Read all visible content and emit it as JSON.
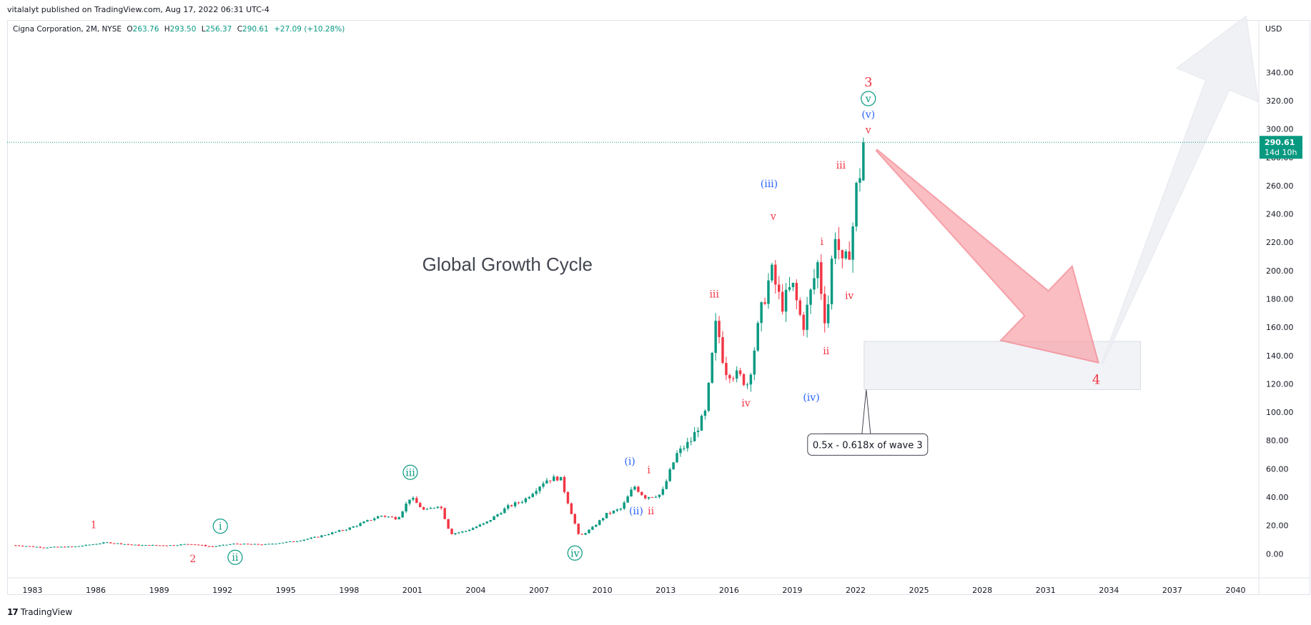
{
  "header": {
    "published_by": "vitalalyt published on TradingView.com, Aug 17, 2022 06:31 UTC-4"
  },
  "symbol_bar": {
    "name": "Cigna Corporation, 2M, NYSE",
    "o_label": "O",
    "o_value": "263.76",
    "h_label": "H",
    "h_value": "293.50",
    "l_label": "L",
    "l_value": "256.37",
    "c_label": "C",
    "c_value": "290.61",
    "change": "+27.09 (+10.28%)"
  },
  "price_badge": {
    "price": "290.61",
    "countdown": "14d 10h"
  },
  "footer": {
    "brand": "TradingView"
  },
  "colors": {
    "up": "#089981",
    "down": "#f23645",
    "wave_red": "#f23645",
    "wave_blue": "#2962ff",
    "wave_green": "#089981",
    "arrow_fill": "#f7a8ae",
    "arrow_stroke": "#f47f89",
    "grey_arrow": "#eef0f4",
    "zone_fill": "#f1f3f7"
  },
  "chart_data": {
    "type": "candlestick",
    "interval": "2M",
    "currency_label": "USD",
    "last_price": 290.61,
    "ylim": [
      -17,
      377
    ],
    "xlim": [
      1981.8,
      2041.1
    ],
    "y_ticks": [
      "0.00",
      "20.00",
      "40.00",
      "60.00",
      "80.00",
      "100.00",
      "120.00",
      "140.00",
      "160.00",
      "180.00",
      "200.00",
      "220.00",
      "240.00",
      "260.00",
      "280.00",
      "300.00",
      "320.00",
      "340.00"
    ],
    "y_tick_values": [
      0,
      20,
      40,
      60,
      80,
      100,
      120,
      140,
      160,
      180,
      200,
      220,
      240,
      260,
      280,
      300,
      320,
      340
    ],
    "x_ticks": [
      "1983",
      "1986",
      "1989",
      "1992",
      "1995",
      "1998",
      "2001",
      "2004",
      "2007",
      "2010",
      "2013",
      "2016",
      "2019",
      "2022",
      "2025",
      "2028",
      "2031",
      "2034",
      "2037",
      "2040"
    ],
    "x_tick_values": [
      1983,
      1986,
      1989,
      1992,
      1995,
      1998,
      2001,
      2004,
      2007,
      2010,
      2013,
      2016,
      2019,
      2022,
      2025,
      2028,
      2031,
      2034,
      2037,
      2040
    ],
    "price_anchors": [
      [
        1982.2,
        6
      ],
      [
        1983.5,
        4.5
      ],
      [
        1985,
        5
      ],
      [
        1986.5,
        8
      ],
      [
        1988,
        6
      ],
      [
        1989.5,
        6
      ],
      [
        1990.5,
        7
      ],
      [
        1991.5,
        5
      ],
      [
        1992.5,
        7
      ],
      [
        1994,
        6.5
      ],
      [
        1995.5,
        9
      ],
      [
        1996.5,
        12
      ],
      [
        1998,
        18
      ],
      [
        1999.5,
        27
      ],
      [
        2000.3,
        25
      ],
      [
        2000.9,
        40
      ],
      [
        2001.6,
        30
      ],
      [
        2002.3,
        35
      ],
      [
        2002.8,
        14
      ],
      [
        2003.5,
        16
      ],
      [
        2004.5,
        22
      ],
      [
        2005.5,
        33
      ],
      [
        2006.3,
        38
      ],
      [
        2007.3,
        52
      ],
      [
        2008,
        54
      ],
      [
        2008.4,
        35
      ],
      [
        2008.9,
        12
      ],
      [
        2009.5,
        18
      ],
      [
        2010.2,
        28
      ],
      [
        2010.9,
        32
      ],
      [
        2011.5,
        48
      ],
      [
        2012,
        40
      ],
      [
        2012.8,
        42
      ],
      [
        2013.5,
        70
      ],
      [
        2014.2,
        80
      ],
      [
        2014.9,
        100
      ],
      [
        2015.4,
        165
      ],
      [
        2015.8,
        130
      ],
      [
        2016.5,
        125
      ],
      [
        2016.9,
        120
      ],
      [
        2017.5,
        170
      ],
      [
        2018,
        200
      ],
      [
        2018.5,
        175
      ],
      [
        2019,
        190
      ],
      [
        2019.5,
        160
      ],
      [
        2019.8,
        180
      ],
      [
        2020.2,
        205
      ],
      [
        2020.6,
        160
      ],
      [
        2021,
        230
      ],
      [
        2021.4,
        200
      ],
      [
        2021.8,
        220
      ],
      [
        2022,
        255
      ],
      [
        2022.5,
        290.6
      ]
    ],
    "horizontal_line": {
      "price": 290.61,
      "style": "dotted"
    },
    "target_zone": {
      "x_start": 2022.4,
      "x_end": 2035.5,
      "y_low": 116,
      "y_high": 150
    },
    "down_arrow": {
      "from": [
        2023,
        285
      ],
      "to": [
        2033.5,
        135
      ]
    },
    "up_arrow": {
      "from": [
        2033.7,
        135
      ],
      "to": [
        2040.5,
        380
      ]
    },
    "annotation_text": "Global Growth Cycle",
    "fib_note": "0.5x - 0.618x of wave 3",
    "wave_labels": [
      {
        "text": "1",
        "x": 1985.9,
        "y": 18,
        "color": "red"
      },
      {
        "text": "2",
        "x": 1990.6,
        "y": -6,
        "color": "red"
      },
      {
        "text": "i",
        "x": 1991.9,
        "y": 17,
        "color": "green",
        "circle": true
      },
      {
        "text": "ii",
        "x": 1992.6,
        "y": -5,
        "color": "green",
        "circle": true
      },
      {
        "text": "iii",
        "x": 2000.9,
        "y": 55,
        "color": "green",
        "circle": true
      },
      {
        "text": "iv",
        "x": 2008.7,
        "y": -2,
        "color": "green",
        "circle": true
      },
      {
        "text": "(i)",
        "x": 2011.3,
        "y": 63,
        "color": "blue"
      },
      {
        "text": "i",
        "x": 2012.2,
        "y": 57,
        "color": "red"
      },
      {
        "text": "(ii)",
        "x": 2011.6,
        "y": 28,
        "color": "blue"
      },
      {
        "text": "ii",
        "x": 2012.3,
        "y": 28,
        "color": "red"
      },
      {
        "text": "iii",
        "x": 2015.3,
        "y": 181,
        "color": "red"
      },
      {
        "text": "iv",
        "x": 2016.8,
        "y": 104,
        "color": "red"
      },
      {
        "text": "(iii)",
        "x": 2017.9,
        "y": 259,
        "color": "blue"
      },
      {
        "text": "v",
        "x": 2018.1,
        "y": 236,
        "color": "red"
      },
      {
        "text": "(iv)",
        "x": 2019.9,
        "y": 108,
        "color": "blue"
      },
      {
        "text": "i",
        "x": 2020.4,
        "y": 218,
        "color": "red"
      },
      {
        "text": "ii",
        "x": 2020.6,
        "y": 141,
        "color": "red"
      },
      {
        "text": "iii",
        "x": 2021.3,
        "y": 272,
        "color": "red"
      },
      {
        "text": "iv",
        "x": 2021.7,
        "y": 180,
        "color": "red"
      },
      {
        "text": "v",
        "x": 2022.6,
        "y": 297,
        "color": "red"
      },
      {
        "text": "(v)",
        "x": 2022.6,
        "y": 308,
        "color": "blue"
      },
      {
        "text": "v",
        "x": 2022.6,
        "y": 319,
        "color": "green",
        "circle": true
      },
      {
        "text": "3",
        "x": 2022.6,
        "y": 330,
        "color": "red",
        "large": true
      },
      {
        "text": "4",
        "x": 2033.4,
        "y": 120,
        "color": "red",
        "large": true
      }
    ]
  }
}
